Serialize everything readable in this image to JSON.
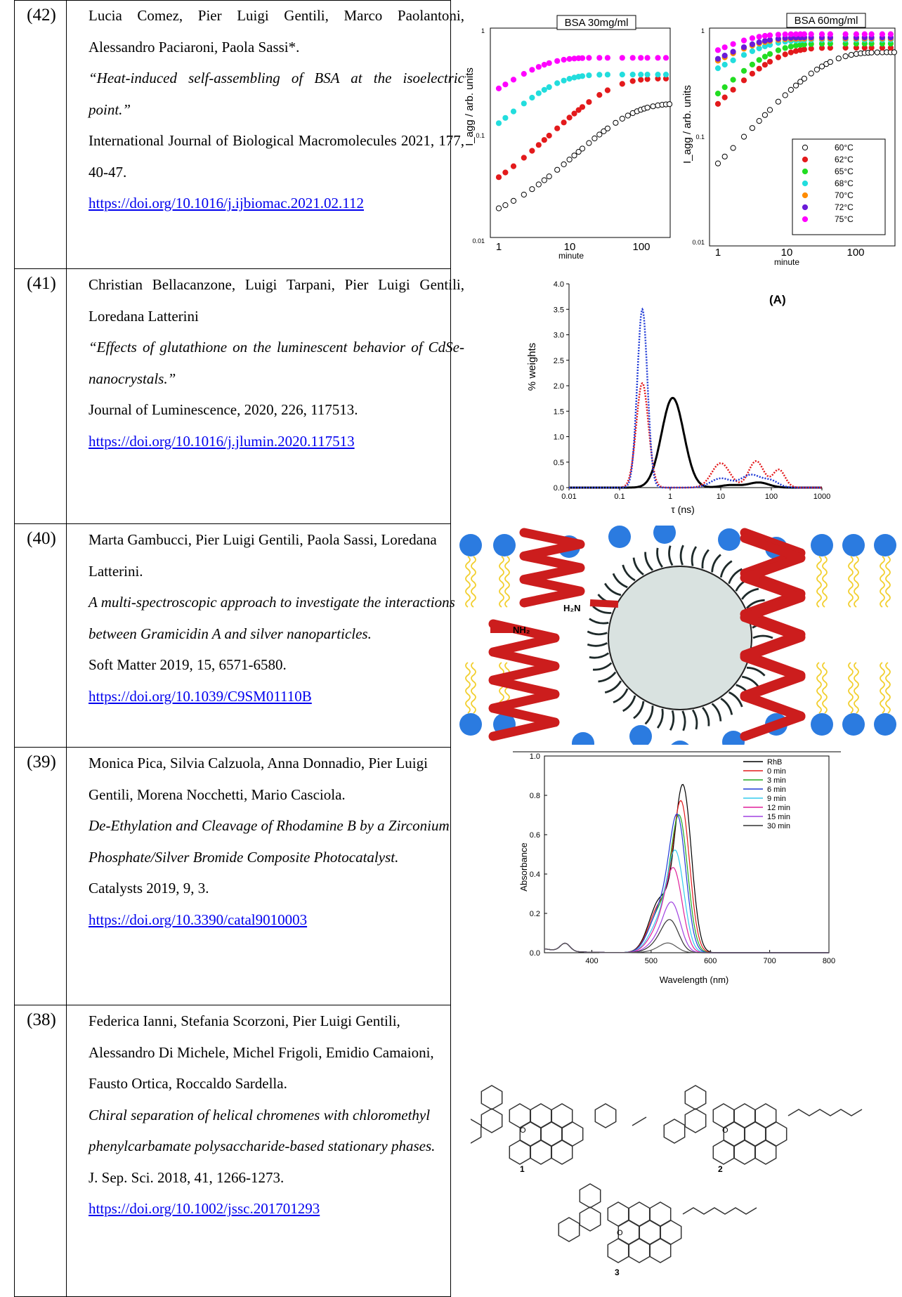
{
  "entries": [
    {
      "num": "(42)",
      "authors": "Lucia Comez, Pier Luigi Gentili, Marco Paolantoni, Alessandro Paciaroni, Paola Sassi*.",
      "title": "“Heat-induced self-assembling of BSA at the isoelectric point.”",
      "journal": "International Journal of Biological Macromolecules 2021, 177, 40-47.",
      "link": "https://doi.org/10.1016/j.ijbiomac.2021.02.112"
    },
    {
      "num": "(41)",
      "authors": "Christian Bellacanzone, Luigi Tarpani, Pier Luigi Gentili, Loredana Latterini",
      "title": "“Effects of glutathione on the luminescent behavior of CdSe-nanocrystals.”",
      "journal": "Journal of Luminescence, 2020, 226, 117513.",
      "link": "https://doi.org/10.1016/j.jlumin.2020.117513"
    },
    {
      "num": "(40)",
      "authors": "Marta Gambucci, Pier Luigi Gentili, Paola Sassi, Loredana Latterini.",
      "title": "A multi-spectroscopic approach to investigate the interactions between Gramicidin A and silver nanoparticles.",
      "journal": "Soft Matter 2019, 15, 6571-6580.",
      "link": "https://doi.org/10.1039/C9SM01110B"
    },
    {
      "num": "(39)",
      "authors": "Monica Pica, Silvia Calzuola, Anna Donnadio, Pier Luigi Gentili, Morena Nocchetti, Mario Casciola.",
      "title": "De-Ethylation and Cleavage of Rhodamine B by a Zirconium Phosphate/Silver Bromide Composite Photocatalyst.",
      "journal": "Catalysts 2019, 9, 3.",
      "link": "https://doi.org/10.3390/catal9010003"
    },
    {
      "num": "(38)",
      "authors": "Federica Ianni, Stefania Scorzoni, Pier Luigi Gentili, Alessandro Di Michele, Michel Frigoli, Emidio Camaioni, Fausto Ortica, Roccaldo Sardella.",
      "title": "Chiral separation of helical chromenes with chloromethyl phenylcarbamate polysaccharide-based stationary phases.",
      "journal": "J. Sep. Sci. 2018, 41, 1266-1273.",
      "link": "https://doi.org/10.1002/jssc.201701293"
    }
  ],
  "figures": {
    "fig42": {
      "left_panel_title": "BSA 30mg/ml",
      "right_panel_title": "BSA 60mg/ml",
      "ylabel": "I_agg / arb. units",
      "xlabel": "minute",
      "y_ticks": [
        "1",
        "0.1",
        "0.01"
      ],
      "x_ticks": [
        "1",
        "10",
        "100"
      ],
      "legend": [
        "60°C",
        "62°C",
        "65°C",
        "68°C",
        "70°C",
        "72°C",
        "75°C"
      ],
      "legend_colors": [
        "#ffffff",
        "#e31a1c",
        "#22dd22",
        "#22dddd",
        "#ff8c00",
        "#6a1bd8",
        "#ff00ff"
      ]
    },
    "fig41": {
      "panel_label": "(A)",
      "ylabel": "% weights",
      "xlabel": "τ (ns)",
      "y_ticks": [
        "0.0",
        "0.5",
        "1.0",
        "1.5",
        "2.0",
        "2.5",
        "3.0",
        "3.5",
        "4.0"
      ],
      "x_ticks": [
        "0.01",
        "0.1",
        "1",
        "10",
        "100",
        "1000"
      ]
    },
    "fig40": {
      "label_h2n": "H₂N",
      "label_nh2": "NH₂"
    },
    "fig39": {
      "ylabel": "Absorbance",
      "xlabel": "Wavelength (nm)",
      "y_ticks": [
        "0.0",
        "0.2",
        "0.4",
        "0.6",
        "0.8",
        "1.0"
      ],
      "x_ticks": [
        "400",
        "500",
        "600",
        "700",
        "800"
      ],
      "legend": [
        "RhB",
        "0 min",
        "3 min",
        "6 min",
        "9 min",
        "12 min",
        "15 min",
        "30 min"
      ],
      "legend_colors": [
        "#000000",
        "#e31a1c",
        "#22aa22",
        "#1f3ad6",
        "#33ccee",
        "#e0209a",
        "#a040e0",
        "#333333"
      ]
    },
    "fig38": {
      "labels": [
        "1",
        "2",
        "3"
      ],
      "atom_o": "O"
    }
  }
}
